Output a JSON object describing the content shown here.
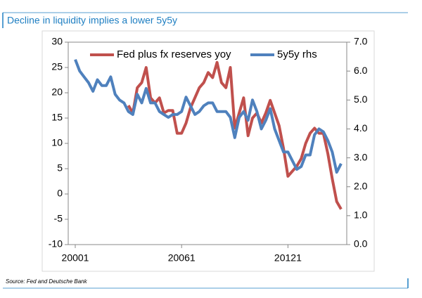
{
  "chart_data": {
    "type": "line",
    "title": "Decline in liquidity implies a lower 5y5y",
    "source": "Source: Fed and Deutsche Bank",
    "categories": [
      "20001",
      null,
      null,
      null,
      null,
      null,
      null,
      null,
      null,
      null,
      null,
      null,
      null,
      null,
      null,
      null,
      null,
      null,
      null,
      null,
      null,
      null,
      null,
      null,
      "20061",
      null,
      null,
      null,
      null,
      null,
      null,
      null,
      null,
      null,
      null,
      null,
      null,
      null,
      null,
      null,
      null,
      null,
      null,
      null,
      null,
      null,
      null,
      null,
      "20121",
      null,
      null,
      null,
      null,
      null,
      null,
      null,
      null,
      null,
      null,
      null,
      null
    ],
    "series": [
      {
        "name": "Fed plus fx reserves yoy",
        "color": "#c0504d",
        "axis": "y",
        "values": [
          null,
          null,
          null,
          null,
          null,
          null,
          null,
          null,
          null,
          null,
          null,
          null,
          17.5,
          16,
          21,
          22,
          25,
          19,
          18,
          19,
          16,
          16.5,
          16.5,
          12,
          12,
          14,
          17,
          19,
          21,
          22,
          24,
          23,
          26,
          22,
          21,
          25,
          13,
          16,
          19,
          11.5,
          15,
          16,
          14,
          16,
          18.5,
          16,
          13.5,
          9,
          3.5,
          4.5,
          5.5,
          7,
          10,
          12,
          13,
          12,
          12,
          8,
          3,
          -1.5,
          -3
        ]
      },
      {
        "name": "5y5y rhs",
        "color": "#4f81bd",
        "axis": "y2",
        "values": [
          6.4,
          6.0,
          5.8,
          5.6,
          5.3,
          5.7,
          5.5,
          5.5,
          5.8,
          5.2,
          5.0,
          4.9,
          4.6,
          4.5,
          5.2,
          4.9,
          5.4,
          4.9,
          4.9,
          4.6,
          4.5,
          4.4,
          4.5,
          4.5,
          4.6,
          5.1,
          4.8,
          4.5,
          4.6,
          4.8,
          4.9,
          4.9,
          4.6,
          4.6,
          4.6,
          4.4,
          3.7,
          4.4,
          4.6,
          4.3,
          5.0,
          4.6,
          4.0,
          4.3,
          4.7,
          4.0,
          3.6,
          3.2,
          3.2,
          2.9,
          2.6,
          2.7,
          3.1,
          3.1,
          3.8,
          4.0,
          3.9,
          3.6,
          3.2,
          2.5,
          2.8
        ]
      }
    ],
    "ylim": [
      -10,
      30
    ],
    "yticks": [
      -10,
      -5,
      0,
      5,
      10,
      15,
      20,
      25,
      30
    ],
    "y2lim": [
      0,
      7
    ],
    "y2ticks": [
      {
        "value": 0,
        "label": "0.0"
      },
      {
        "value": 1,
        "label": "1.0"
      },
      {
        "value": 2,
        "label": "2.0"
      },
      {
        "value": 3,
        "label": "3.0"
      },
      {
        "value": 4,
        "label": "4.0"
      },
      {
        "value": 5,
        "label": "5.0"
      },
      {
        "value": 6,
        "label": "6.0"
      },
      {
        "value": 7,
        "label": "7.0"
      }
    ],
    "legend": "top"
  }
}
